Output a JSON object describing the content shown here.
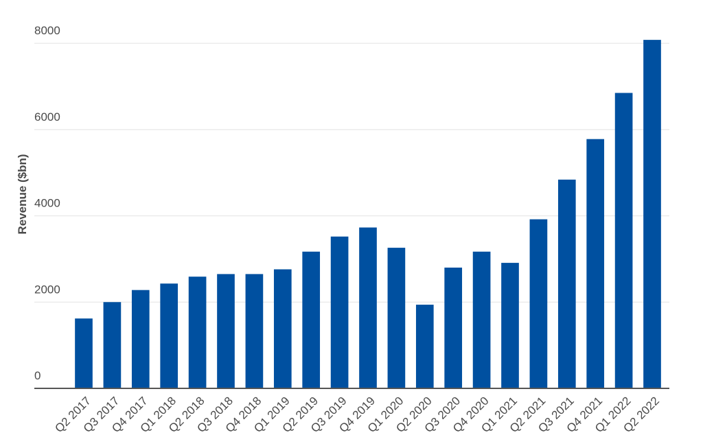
{
  "chart_data": {
    "type": "bar",
    "ylabel": "Revenue ($bn)",
    "categories": [
      "Q2 2017",
      "Q3 2017",
      "Q4 2017",
      "Q1 2018",
      "Q2 2018",
      "Q3 2018",
      "Q4 2018",
      "Q1 2019",
      "Q2 2019",
      "Q3 2019",
      "Q4 2019",
      "Q1 2020",
      "Q2 2020",
      "Q3 2020",
      "Q4 2020",
      "Q1 2021",
      "Q2 2021",
      "Q3 2021",
      "Q4 2021",
      "Q1 2022",
      "Q2 2022"
    ],
    "values": [
      1620,
      2000,
      2280,
      2430,
      2590,
      2650,
      2650,
      2760,
      3170,
      3520,
      3730,
      3260,
      1940,
      2800,
      3170,
      2910,
      3920,
      4840,
      5780,
      6850,
      8080
    ],
    "color": "#0050a0",
    "ylim": [
      0,
      8400
    ],
    "yticks": [
      0,
      2000,
      4000,
      6000,
      8000
    ],
    "grid": true
  }
}
